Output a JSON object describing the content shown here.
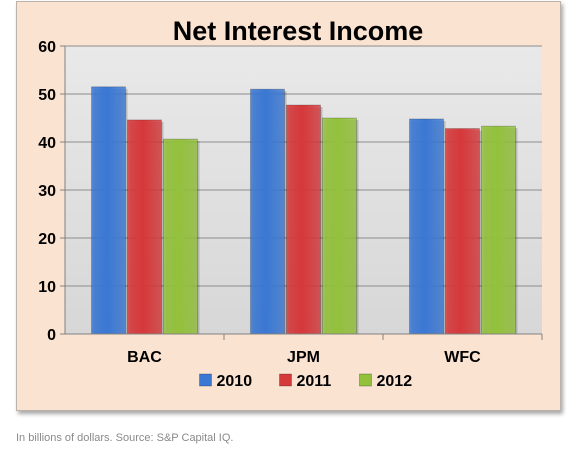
{
  "chart_data": {
    "type": "bar",
    "title": "Net Interest Income",
    "categories": [
      "BAC",
      "JPM",
      "WFC"
    ],
    "series": [
      {
        "name": "2010",
        "values": [
          51.5,
          51.0,
          44.8
        ],
        "color": "#3a78d4"
      },
      {
        "name": "2011",
        "values": [
          44.6,
          47.7,
          42.8
        ],
        "color": "#d6383a"
      },
      {
        "name": "2012",
        "values": [
          40.6,
          45.0,
          43.3
        ],
        "color": "#93c13c"
      }
    ],
    "ylim": [
      0,
      60
    ],
    "yticks": [
      "0",
      "10",
      "20",
      "30",
      "40",
      "50",
      "60"
    ],
    "grid": true,
    "legend": "bottom"
  },
  "caption": "In billions of dollars. Source: S&P Capital IQ."
}
